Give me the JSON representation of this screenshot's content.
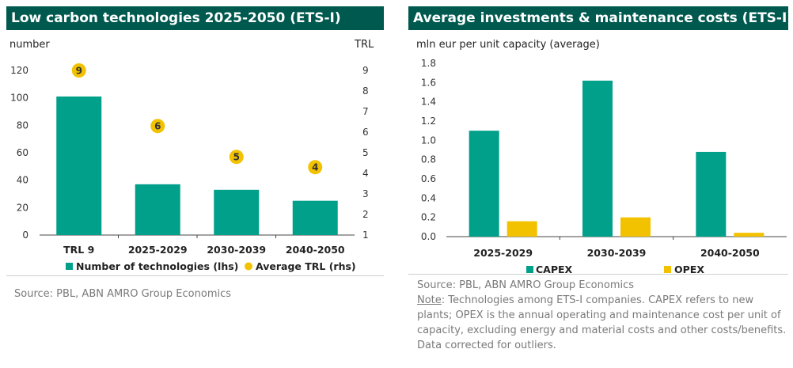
{
  "left": {
    "title": "Low carbon technologies 2025-2050 (ETS-I)",
    "source": "Source: PBL, ABN AMRO  Group Economics"
  },
  "right": {
    "title": "Average investments & maintenance costs (ETS-I)",
    "source": "Source: PBL, ABN AMRO Group Economics",
    "note_label": "Note",
    "note_lines": [
      ": Technologies among ETS-I companies. CAPEX refers to new",
      "plants; OPEX is the annual operating and maintenance cost per unit of",
      "capacity, excluding energy and material costs and other costs/benefits.",
      "Data corrected for outliers."
    ]
  },
  "colors": {
    "teal": "#00a08a",
    "yellow": "#f2c200",
    "header": "#00594f"
  },
  "chart_data": [
    {
      "type": "bar",
      "categories": [
        "TRL 9",
        "2025-2029",
        "2030-2039",
        "2040-2050"
      ],
      "series": [
        {
          "name": "Number of technologies (lhs)",
          "values": [
            101,
            37,
            33,
            25
          ],
          "kind": "bar",
          "axis": "left"
        },
        {
          "name": "Average TRL (rhs)",
          "values": [
            9,
            6.3,
            4.8,
            4.3
          ],
          "labels": [
            "9",
            "6",
            "5",
            "4"
          ],
          "kind": "scatter",
          "axis": "right"
        }
      ],
      "ylabel": "number",
      "y2label": "TRL",
      "ylim": [
        0,
        120
      ],
      "yticks": [
        0,
        20,
        40,
        60,
        80,
        100,
        120
      ],
      "y2lim": [
        1,
        9
      ],
      "y2ticks": [
        1,
        2,
        3,
        4,
        5,
        6,
        7,
        8,
        9
      ],
      "grid": false,
      "legend": "bottom"
    },
    {
      "type": "bar",
      "categories": [
        "2025-2029",
        "2030-2039",
        "2040-2050"
      ],
      "series": [
        {
          "name": "CAPEX",
          "values": [
            1.1,
            1.62,
            0.88
          ]
        },
        {
          "name": "OPEX",
          "values": [
            0.16,
            0.2,
            0.04
          ]
        }
      ],
      "ylabel": "mln eur per unit capacity (average)",
      "ylim": [
        0,
        1.8
      ],
      "yticks": [
        "0.0",
        "0.2",
        "0.4",
        "0.6",
        "0.8",
        "1.0",
        "1.2",
        "1.4",
        "1.6",
        "1.8"
      ],
      "grid": false,
      "legend": "bottom"
    }
  ]
}
